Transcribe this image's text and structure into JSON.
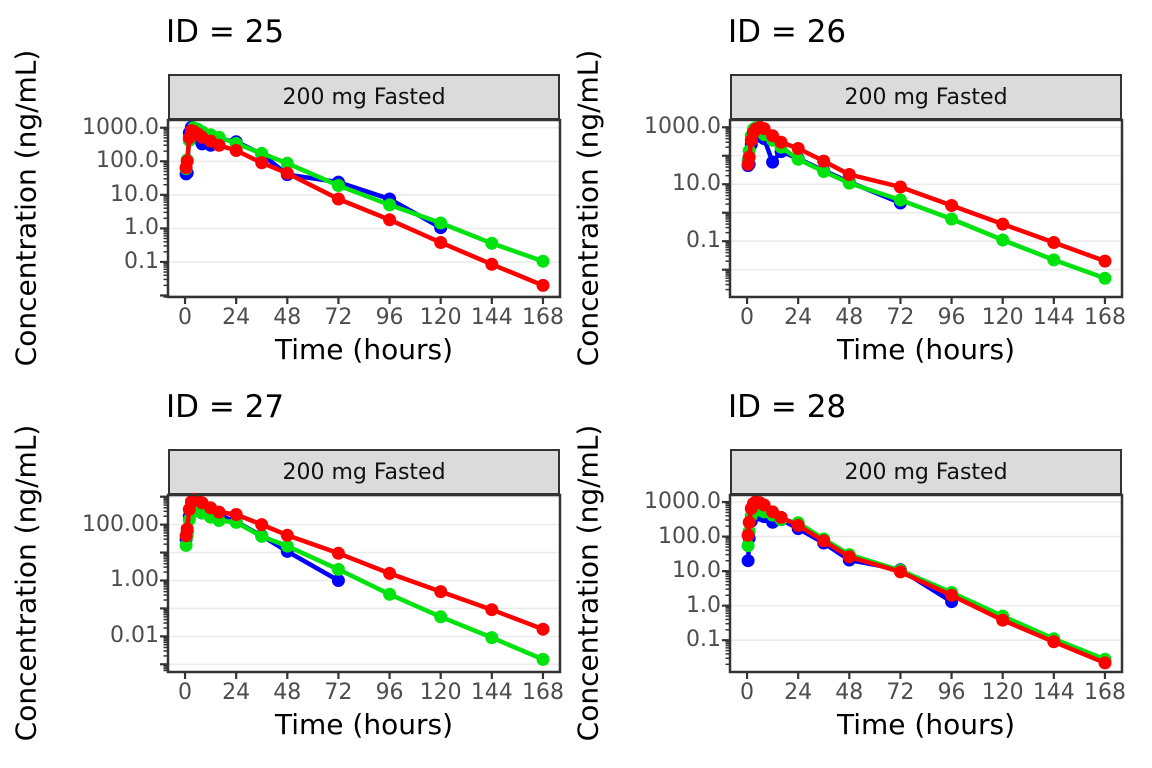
{
  "figure": {
    "background": "#FFFFFF",
    "strip_bg": "#DBDBDB",
    "strip_border": "#333333",
    "grid_color": "#EBEBEB",
    "spine_color": "#333333",
    "tick_color": "#333333",
    "tick_label_color": "#4D4D4D",
    "series_colors": {
      "blue": "#0000FF",
      "green": "#00E30E",
      "red": "#FF0000"
    }
  },
  "chart_data": [
    {
      "type": "line",
      "title": "ID = 25",
      "strip_label": "200 mg Fasted",
      "xlabel": "Time (hours)",
      "ylabel": "Concentration (ng/mL)",
      "yscale": "log",
      "grid": "horizontal-decades",
      "x_ticks": [
        0,
        24,
        48,
        72,
        96,
        120,
        144,
        168
      ],
      "xlim": [
        -8,
        176
      ],
      "ylim": [
        0.009,
        1700
      ],
      "y_ticks": [
        {
          "v": 1000,
          "label": "1000.0"
        },
        {
          "v": 100,
          "label": "100.0"
        },
        {
          "v": 10,
          "label": "10.0"
        },
        {
          "v": 1,
          "label": "1.0"
        },
        {
          "v": 0.1,
          "label": "0.1"
        }
      ],
      "series": [
        {
          "name": "blue",
          "color": "#0000FF",
          "x": [
            0.5,
            1,
            2,
            3,
            4,
            6,
            8,
            12,
            16,
            24,
            36,
            48,
            72,
            96,
            120
          ],
          "y": [
            42,
            45,
            700,
            1030,
            950,
            480,
            330,
            300,
            480,
            380,
            165,
            40,
            24,
            7.5,
            1.05
          ]
        },
        {
          "name": "green",
          "color": "#00E30E",
          "x": [
            0.5,
            1,
            2,
            3,
            4,
            6,
            8,
            12,
            16,
            24,
            36,
            48,
            72,
            96,
            120,
            144,
            168
          ],
          "y": [
            60,
            110,
            420,
            800,
            1000,
            900,
            750,
            620,
            520,
            340,
            172,
            87,
            19,
            5,
            1.45,
            0.36,
            0.105
          ]
        },
        {
          "name": "red",
          "color": "#FF0000",
          "x": [
            0.5,
            1,
            2,
            3,
            4,
            6,
            8,
            12,
            16,
            24,
            36,
            48,
            72,
            96,
            120,
            144,
            168
          ],
          "y": [
            65,
            100,
            500,
            820,
            780,
            650,
            520,
            400,
            300,
            210,
            90,
            44,
            7.5,
            1.8,
            0.38,
            0.085,
            0.02
          ]
        }
      ]
    },
    {
      "type": "line",
      "title": "ID = 26",
      "strip_label": "200 mg Fasted",
      "xlabel": "Time (hours)",
      "ylabel": "Concentration (ng/mL)",
      "yscale": "log",
      "grid": "horizontal-decades",
      "x_ticks": [
        0,
        24,
        48,
        72,
        96,
        120,
        144,
        168
      ],
      "xlim": [
        -8,
        176
      ],
      "ylim": [
        0.0011,
        1800
      ],
      "y_ticks": [
        {
          "v": 1000,
          "label": "1000.0"
        },
        {
          "v": 10,
          "label": "10.0"
        },
        {
          "v": 0.1,
          "label": "0.1"
        }
      ],
      "series": [
        {
          "name": "blue",
          "color": "#0000FF",
          "x": [
            0.5,
            1,
            2,
            3,
            4,
            6,
            8,
            12,
            16,
            24,
            36,
            48,
            72
          ],
          "y": [
            45,
            50,
            250,
            450,
            520,
            480,
            400,
            60,
            140,
            80,
            30,
            12,
            2.2
          ]
        },
        {
          "name": "green",
          "color": "#00E30E",
          "x": [
            0.5,
            1,
            2,
            3,
            4,
            6,
            8,
            12,
            16,
            24,
            36,
            48,
            72,
            96,
            120,
            144,
            168
          ],
          "y": [
            70,
            150,
            500,
            850,
            950,
            750,
            550,
            350,
            200,
            75,
            28,
            11,
            2.8,
            0.6,
            0.11,
            0.022,
            0.005
          ]
        },
        {
          "name": "red",
          "color": "#FF0000",
          "x": [
            0.5,
            1,
            2,
            3,
            4,
            6,
            8,
            12,
            16,
            24,
            36,
            48,
            72,
            96,
            120,
            144,
            168
          ],
          "y": [
            50,
            90,
            350,
            650,
            850,
            1000,
            900,
            500,
            300,
            180,
            65,
            22,
            8,
            1.8,
            0.4,
            0.09,
            0.02
          ]
        }
      ]
    },
    {
      "type": "line",
      "title": "ID = 27",
      "strip_label": "200 mg Fasted",
      "xlabel": "Time (hours)",
      "ylabel": "Concentration (ng/mL)",
      "yscale": "log",
      "grid": "horizontal-decades",
      "x_ticks": [
        0,
        24,
        48,
        72,
        96,
        120,
        144,
        168
      ],
      "xlim": [
        -8,
        176
      ],
      "ylim": [
        0.00053,
        1150
      ],
      "y_ticks": [
        {
          "v": 100,
          "label": "100.00"
        },
        {
          "v": 1,
          "label": "1.00"
        },
        {
          "v": 0.01,
          "label": "0.01"
        }
      ],
      "series": [
        {
          "name": "blue",
          "color": "#0000FF",
          "x": [
            0.5,
            1,
            2,
            3,
            4,
            6,
            8,
            12,
            16,
            24,
            36,
            48,
            72
          ],
          "y": [
            30,
            55,
            200,
            320,
            340,
            310,
            260,
            190,
            220,
            125,
            40,
            11,
            1.0
          ]
        },
        {
          "name": "green",
          "color": "#00E30E",
          "x": [
            0.5,
            1,
            2,
            3,
            4,
            6,
            8,
            12,
            16,
            24,
            36,
            48,
            72,
            96,
            120,
            144,
            168
          ],
          "y": [
            18,
            40,
            150,
            280,
            340,
            310,
            260,
            185,
            140,
            120,
            38,
            17,
            2.5,
            0.32,
            0.05,
            0.009,
            0.0015
          ]
        },
        {
          "name": "red",
          "color": "#FF0000",
          "x": [
            0.5,
            1,
            2,
            3,
            4,
            6,
            8,
            12,
            16,
            24,
            36,
            48,
            72,
            96,
            120,
            144,
            168
          ],
          "y": [
            40,
            70,
            350,
            650,
            800,
            740,
            600,
            400,
            280,
            230,
            100,
            42,
            9.4,
            1.8,
            0.4,
            0.09,
            0.018
          ]
        }
      ]
    },
    {
      "type": "line",
      "title": "ID = 28",
      "strip_label": "200 mg Fasted",
      "xlabel": "Time (hours)",
      "ylabel": "Concentration (ng/mL)",
      "yscale": "log",
      "grid": "horizontal-decades",
      "x_ticks": [
        0,
        24,
        48,
        72,
        96,
        120,
        144,
        168
      ],
      "xlim": [
        -8,
        176
      ],
      "ylim": [
        0.012,
        1600
      ],
      "y_ticks": [
        {
          "v": 1000,
          "label": "1000.0"
        },
        {
          "v": 100,
          "label": "100.0"
        },
        {
          "v": 10,
          "label": "10.0"
        },
        {
          "v": 1,
          "label": "1.0"
        },
        {
          "v": 0.1,
          "label": "0.1"
        }
      ],
      "series": [
        {
          "name": "blue",
          "color": "#0000FF",
          "x": [
            0.5,
            1,
            2,
            3,
            4,
            6,
            8,
            12,
            16,
            24,
            36,
            48,
            72,
            96
          ],
          "y": [
            20,
            90,
            280,
            420,
            460,
            420,
            380,
            260,
            310,
            170,
            65,
            21,
            11,
            1.3
          ]
        },
        {
          "name": "green",
          "color": "#00E30E",
          "x": [
            0.5,
            1,
            2,
            3,
            4,
            6,
            8,
            12,
            16,
            24,
            36,
            48,
            72,
            96,
            120,
            144,
            168
          ],
          "y": [
            55,
            140,
            400,
            560,
            620,
            580,
            520,
            420,
            310,
            250,
            85,
            30,
            10.5,
            2.4,
            0.5,
            0.11,
            0.028
          ]
        },
        {
          "name": "red",
          "color": "#FF0000",
          "x": [
            0.5,
            1,
            2,
            3,
            4,
            6,
            8,
            12,
            16,
            24,
            36,
            48,
            72,
            96,
            120,
            144,
            168
          ],
          "y": [
            110,
            260,
            650,
            900,
            1000,
            950,
            820,
            520,
            360,
            210,
            75,
            26,
            9.5,
            2.0,
            0.38,
            0.09,
            0.022
          ]
        }
      ]
    }
  ]
}
